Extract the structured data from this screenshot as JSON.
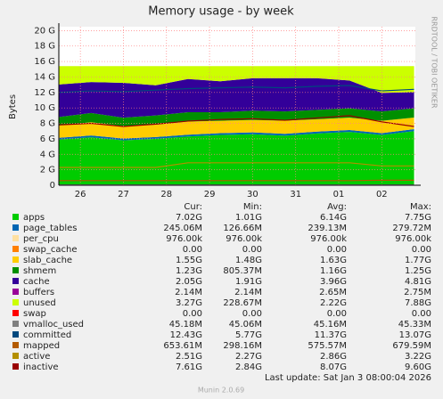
{
  "chart_data": {
    "type": "area",
    "title": "Memory usage - by week",
    "ylabel": "Bytes",
    "side_label": "RRDTOOL / TOBI OETIKER",
    "x": [
      0,
      0.75,
      1.5,
      2.25,
      3,
      3.75,
      4.5,
      5.25,
      6,
      6.75,
      7.5,
      8.25
    ],
    "xlim": [
      0,
      8.28
    ],
    "xticks": [
      {
        "value": 0.5,
        "label": "26"
      },
      {
        "value": 1.5,
        "label": "27"
      },
      {
        "value": 2.5,
        "label": "28"
      },
      {
        "value": 3.5,
        "label": "29"
      },
      {
        "value": 4.5,
        "label": "30"
      },
      {
        "value": 5.5,
        "label": "31"
      },
      {
        "value": 6.5,
        "label": "01"
      },
      {
        "value": 7.5,
        "label": "02"
      }
    ],
    "ylim": [
      0,
      20.5
    ],
    "yticks": [
      {
        "value": 0,
        "label": "0"
      },
      {
        "value": 2,
        "label": "2 G"
      },
      {
        "value": 4,
        "label": "4 G"
      },
      {
        "value": 6,
        "label": "6 G"
      },
      {
        "value": 8,
        "label": "8 G"
      },
      {
        "value": 10,
        "label": "10 G"
      },
      {
        "value": 12,
        "label": "12 G"
      },
      {
        "value": 14,
        "label": "14 G"
      },
      {
        "value": 16,
        "label": "16 G"
      },
      {
        "value": 18,
        "label": "18 G"
      },
      {
        "value": 20,
        "label": "20 G"
      }
    ],
    "grid": true,
    "legend_columns": [
      "Cur:",
      "Min:",
      "Avg:",
      "Max:"
    ],
    "series": [
      {
        "name": "apps",
        "color": "#00cc00",
        "draw": "stack",
        "values": [
          5.9,
          6.2,
          5.8,
          6.0,
          6.3,
          6.5,
          6.6,
          6.4,
          6.7,
          6.9,
          6.5,
          7.0
        ],
        "stats": [
          "7.02G",
          "1.01G",
          "6.14G",
          "7.75G"
        ]
      },
      {
        "name": "page_tables",
        "color": "#0066b3",
        "draw": "stack",
        "values": [
          0.23,
          0.24,
          0.24,
          0.23,
          0.24,
          0.24,
          0.24,
          0.25,
          0.24,
          0.24,
          0.24,
          0.25
        ],
        "stats": [
          "245.06M",
          "126.66M",
          "239.13M",
          "279.72M"
        ]
      },
      {
        "name": "per_cpu",
        "color": "#ffe0a0",
        "draw": "stack",
        "values": [
          0.001,
          0.001,
          0.001,
          0.001,
          0.001,
          0.001,
          0.001,
          0.001,
          0.001,
          0.001,
          0.001,
          0.001
        ],
        "stats": [
          "976.00k",
          "976.00k",
          "976.00k",
          "976.00k"
        ]
      },
      {
        "name": "swap_cache",
        "color": "#ff8000",
        "draw": "stack",
        "values": [
          0,
          0,
          0,
          0,
          0,
          0,
          0,
          0,
          0,
          0,
          0,
          0
        ],
        "stats": [
          "0.00",
          "0.00",
          "0.00",
          "0.00"
        ]
      },
      {
        "name": "slab_cache",
        "color": "#ffcc00",
        "draw": "stack",
        "values": [
          1.6,
          1.7,
          1.6,
          1.6,
          1.7,
          1.6,
          1.6,
          1.7,
          1.6,
          1.6,
          1.6,
          1.5
        ],
        "stats": [
          "1.55G",
          "1.48G",
          "1.63G",
          "1.77G"
        ]
      },
      {
        "name": "shmem",
        "color": "#008f00",
        "draw": "stack",
        "values": [
          1.1,
          1.2,
          1.1,
          1.2,
          1.2,
          1.1,
          1.2,
          1.2,
          1.2,
          1.2,
          1.2,
          1.2
        ],
        "stats": [
          "1.23G",
          "805.37M",
          "1.16G",
          "1.25G"
        ]
      },
      {
        "name": "cache",
        "color": "#330099",
        "draw": "stack",
        "values": [
          4.2,
          4.0,
          4.5,
          3.9,
          4.3,
          4.0,
          4.2,
          4.3,
          4.1,
          3.6,
          2.4,
          2.1
        ],
        "stats": [
          "2.05G",
          "1.91G",
          "3.96G",
          "4.81G"
        ]
      },
      {
        "name": "buffers",
        "color": "#990099",
        "draw": "stack",
        "values": [
          0.003,
          0.003,
          0.003,
          0.003,
          0.003,
          0.003,
          0.003,
          0.003,
          0.003,
          0.003,
          0.003,
          0.003
        ],
        "stats": [
          "2.14M",
          "2.14M",
          "2.65M",
          "2.75M"
        ]
      },
      {
        "name": "unused",
        "color": "#ccff00",
        "draw": "stack",
        "values": [
          2.37,
          2.06,
          2.16,
          2.47,
          1.66,
          1.96,
          1.56,
          1.55,
          1.56,
          1.86,
          3.46,
          3.35
        ],
        "stats": [
          "3.27G",
          "228.67M",
          "2.22G",
          "7.88G"
        ]
      },
      {
        "name": "swap",
        "color": "#ff0000",
        "draw": "stack",
        "values": [
          0,
          0,
          0,
          0,
          0,
          0,
          0,
          0,
          0,
          0,
          0,
          0
        ],
        "stats": [
          "0.00",
          "0.00",
          "0.00",
          "0.00"
        ]
      },
      {
        "name": "vmalloc_used",
        "color": "#808080",
        "draw": "line",
        "values": [
          0.045,
          0.045,
          0.045,
          0.045,
          0.045,
          0.045,
          0.045,
          0.045,
          0.045,
          0.045,
          0.045,
          0.045
        ],
        "stats": [
          "45.18M",
          "45.06M",
          "45.16M",
          "45.33M"
        ]
      },
      {
        "name": "committed",
        "color": "#00487d",
        "draw": "line",
        "values": [
          12.0,
          12.2,
          12.1,
          12.3,
          12.5,
          12.6,
          12.7,
          12.6,
          12.8,
          12.9,
          12.2,
          12.4
        ],
        "stats": [
          "12.43G",
          "5.77G",
          "11.37G",
          "13.07G"
        ]
      },
      {
        "name": "mapped",
        "color": "#b35a00",
        "draw": "line",
        "values": [
          0.6,
          0.6,
          0.6,
          0.6,
          0.6,
          0.6,
          0.6,
          0.6,
          0.6,
          0.6,
          0.65,
          0.65
        ],
        "stats": [
          "653.61M",
          "298.16M",
          "575.57M",
          "679.59M"
        ]
      },
      {
        "name": "active",
        "color": "#b38f00",
        "draw": "line",
        "values": [
          2.3,
          2.3,
          2.3,
          2.3,
          2.9,
          2.9,
          2.9,
          2.9,
          2.9,
          2.9,
          2.5,
          2.5
        ],
        "stats": [
          "2.51G",
          "2.27G",
          "2.86G",
          "3.22G"
        ]
      },
      {
        "name": "inactive",
        "color": "#990000",
        "draw": "line",
        "values": [
          7.8,
          8.0,
          7.6,
          7.9,
          8.3,
          8.5,
          8.6,
          8.4,
          8.7,
          9.0,
          8.2,
          7.6
        ],
        "stats": [
          "7.61G",
          "2.84G",
          "8.07G",
          "9.60G"
        ]
      }
    ],
    "footer": "Last update: Sat Jan  3 08:00:04 2026",
    "version": "Munin 2.0.69"
  }
}
